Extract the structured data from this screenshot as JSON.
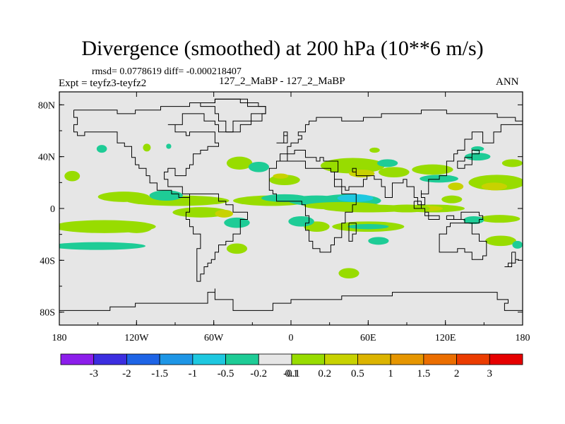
{
  "title": "Divergence (smoothed) at 200 hPa (10**6 m/s)",
  "stats": "rmsd= 0.0778619 diff= -0.000218407",
  "expt": "Expt = teyfz3-teyfz2",
  "case": "127_2_MaBP - 127_2_MaBP",
  "season": "ANN",
  "map": {
    "lon_range": [
      -180,
      180
    ],
    "lat_range": [
      -90,
      90
    ],
    "background_color": "#e6e6e6",
    "x_ticks": [
      {
        "label": "180",
        "value": -180
      },
      {
        "label": "120W",
        "value": -120
      },
      {
        "label": "60W",
        "value": -60
      },
      {
        "label": "0",
        "value": 0
      },
      {
        "label": "60E",
        "value": 60
      },
      {
        "label": "120E",
        "value": 120
      },
      {
        "label": "180",
        "value": 180
      }
    ],
    "y_ticks": [
      {
        "label": "80N",
        "value": 80
      },
      {
        "label": "40N",
        "value": 40
      },
      {
        "label": "0",
        "value": 0
      },
      {
        "label": "40S",
        "value": -40
      },
      {
        "label": "80S",
        "value": -80
      }
    ]
  },
  "colorbar": {
    "colors": [
      "#8c1eeb",
      "#3c2ee0",
      "#1e64e6",
      "#1e96e6",
      "#1ec8e0",
      "#1ecc96",
      "#e6e6e6",
      "#98dc00",
      "#c8d200",
      "#dcb400",
      "#e69600",
      "#eb6e00",
      "#eb3c00",
      "#e60000"
    ],
    "labels": [
      "-3",
      "-2",
      "-1.5",
      "-1",
      "-0.5",
      "-0.2",
      "-0.1",
      "0.1",
      "0.2",
      "0.5",
      "1",
      "1.5",
      "2",
      "3"
    ]
  },
  "field_blobs": [
    {
      "lon": -170,
      "lat": 25,
      "rx": 6,
      "ry": 4,
      "level": "pos_weak"
    },
    {
      "lon": -147,
      "lat": 46,
      "rx": 4,
      "ry": 3,
      "level": "neg_weak"
    },
    {
      "lon": -112,
      "lat": 47,
      "rx": 3,
      "ry": 3,
      "level": "pos_weak"
    },
    {
      "lon": -95,
      "lat": 48,
      "rx": 2,
      "ry": 2,
      "level": "neg_weak"
    },
    {
      "lon": -88,
      "lat": 6,
      "rx": 40,
      "ry": 4,
      "level": "pos_weak"
    },
    {
      "lon": -97,
      "lat": 10,
      "rx": 13,
      "ry": 4,
      "level": "neg_weak"
    },
    {
      "lon": -130,
      "lat": 9,
      "rx": 20,
      "ry": 4,
      "level": "pos_weak"
    },
    {
      "lon": -145,
      "lat": -14,
      "rx": 40,
      "ry": 5,
      "level": "pos_weak"
    },
    {
      "lon": -120,
      "lat": -15,
      "rx": 12,
      "ry": 4,
      "level": "pos_weak"
    },
    {
      "lon": -70,
      "lat": -3,
      "rx": 22,
      "ry": 4,
      "level": "pos_weak"
    },
    {
      "lon": -52,
      "lat": -4,
      "rx": 7,
      "ry": 3,
      "level": "pos_mid"
    },
    {
      "lon": -150,
      "lat": -29,
      "rx": 37,
      "ry": 3,
      "level": "neg_weak"
    },
    {
      "lon": -72,
      "lat": 5,
      "rx": 4,
      "ry": 2,
      "level": "pos_weak"
    },
    {
      "lon": -42,
      "lat": -11,
      "rx": 10,
      "ry": 4,
      "level": "neg_weak"
    },
    {
      "lon": -42,
      "lat": -31,
      "rx": 8,
      "ry": 4,
      "level": "pos_weak"
    },
    {
      "lon": -40,
      "lat": 35,
      "rx": 10,
      "ry": 5,
      "level": "pos_weak"
    },
    {
      "lon": -25,
      "lat": 32,
      "rx": 8,
      "ry": 4,
      "level": "neg_weak"
    },
    {
      "lon": -5,
      "lat": 22,
      "rx": 12,
      "ry": 4,
      "level": "pos_weak"
    },
    {
      "lon": -15,
      "lat": 6,
      "rx": 30,
      "ry": 4,
      "level": "pos_weak"
    },
    {
      "lon": -5,
      "lat": 8,
      "rx": 18,
      "ry": 3,
      "level": "neg_weak"
    },
    {
      "lon": 20,
      "lat": 6,
      "rx": 22,
      "ry": 4,
      "level": "neg_weak"
    },
    {
      "lon": 45,
      "lat": 6,
      "rx": 25,
      "ry": 5,
      "level": "neg_weak"
    },
    {
      "lon": 50,
      "lat": 8,
      "rx": 14,
      "ry": 3,
      "level": "neg_strong"
    },
    {
      "lon": 40,
      "lat": 2,
      "rx": 30,
      "ry": 3,
      "level": "pos_weak"
    },
    {
      "lon": 60,
      "lat": 0,
      "rx": 35,
      "ry": 3,
      "level": "pos_weak"
    },
    {
      "lon": 20,
      "lat": -14,
      "rx": 10,
      "ry": 4,
      "level": "pos_weak"
    },
    {
      "lon": 8,
      "lat": -10,
      "rx": 10,
      "ry": 4,
      "level": "neg_weak"
    },
    {
      "lon": 60,
      "lat": -14,
      "rx": 28,
      "ry": 4,
      "level": "pos_weak"
    },
    {
      "lon": 60,
      "lat": -14,
      "rx": 16,
      "ry": 2,
      "level": "neg_weak"
    },
    {
      "lon": 68,
      "lat": -25,
      "rx": 8,
      "ry": 3,
      "level": "neg_weak"
    },
    {
      "lon": 45,
      "lat": -50,
      "rx": 8,
      "ry": 4,
      "level": "pos_weak"
    },
    {
      "lon": 48,
      "lat": 33,
      "rx": 25,
      "ry": 6,
      "level": "pos_weak"
    },
    {
      "lon": 55,
      "lat": 27,
      "rx": 10,
      "ry": 3,
      "level": "pos_mid"
    },
    {
      "lon": 65,
      "lat": 45,
      "rx": 4,
      "ry": 2,
      "level": "pos_weak"
    },
    {
      "lon": 75,
      "lat": 35,
      "rx": 8,
      "ry": 3,
      "level": "neg_weak"
    },
    {
      "lon": 80,
      "lat": 28,
      "rx": 12,
      "ry": 4,
      "level": "pos_weak"
    },
    {
      "lon": 110,
      "lat": 30,
      "rx": 16,
      "ry": 4,
      "level": "pos_weak"
    },
    {
      "lon": 115,
      "lat": 23,
      "rx": 15,
      "ry": 3,
      "level": "neg_weak"
    },
    {
      "lon": 110,
      "lat": 0,
      "rx": 25,
      "ry": 3,
      "level": "pos_weak"
    },
    {
      "lon": 108,
      "lat": 0,
      "rx": 10,
      "ry": 2,
      "level": "pos_mid"
    },
    {
      "lon": 90,
      "lat": 0,
      "rx": 18,
      "ry": 3,
      "level": "pos_weak"
    },
    {
      "lon": 125,
      "lat": 7,
      "rx": 8,
      "ry": 3,
      "level": "pos_weak"
    },
    {
      "lon": 145,
      "lat": 40,
      "rx": 10,
      "ry": 3,
      "level": "neg_weak"
    },
    {
      "lon": 160,
      "lat": 20,
      "rx": 22,
      "ry": 6,
      "level": "pos_weak"
    },
    {
      "lon": 158,
      "lat": 17,
      "rx": 10,
      "ry": 3,
      "level": "pos_mid"
    },
    {
      "lon": 172,
      "lat": 35,
      "rx": 8,
      "ry": 3,
      "level": "pos_weak"
    },
    {
      "lon": 162,
      "lat": -8,
      "rx": 16,
      "ry": 3,
      "level": "pos_weak"
    },
    {
      "lon": 163,
      "lat": -25,
      "rx": 12,
      "ry": 4,
      "level": "pos_weak"
    },
    {
      "lon": 142,
      "lat": -9,
      "rx": 8,
      "ry": 3,
      "level": "neg_weak"
    },
    {
      "lon": 176,
      "lat": -28,
      "rx": 4,
      "ry": 3,
      "level": "neg_weak"
    },
    {
      "lon": 145,
      "lat": 46,
      "rx": 5,
      "ry": 2,
      "level": "neg_weak"
    },
    {
      "lon": 128,
      "lat": 17,
      "rx": 6,
      "ry": 3,
      "level": "pos_mid"
    },
    {
      "lon": -8,
      "lat": 25,
      "rx": 6,
      "ry": 2,
      "level": "pos_mid"
    }
  ],
  "coastlines": [
    [
      [
        -168,
        75
      ],
      [
        -150,
        75
      ],
      [
        -135,
        74
      ],
      [
        -120,
        76
      ],
      [
        -100,
        78
      ],
      [
        -80,
        82
      ],
      [
        -60,
        83
      ],
      [
        -40,
        82
      ],
      [
        -25,
        80
      ],
      [
        -20,
        72
      ],
      [
        -30,
        68
      ],
      [
        -45,
        60
      ],
      [
        -55,
        64
      ],
      [
        -60,
        68
      ],
      [
        -68,
        74
      ],
      [
        -80,
        72
      ],
      [
        -85,
        66
      ],
      [
        -95,
        64
      ],
      [
        -90,
        60
      ],
      [
        -82,
        55
      ],
      [
        -78,
        60
      ],
      [
        -70,
        58
      ],
      [
        -60,
        52
      ],
      [
        -55,
        48
      ],
      [
        -65,
        44
      ],
      [
        -70,
        42
      ],
      [
        -75,
        38
      ],
      [
        -76,
        34
      ],
      [
        -80,
        30
      ],
      [
        -82,
        26
      ],
      [
        -90,
        30
      ],
      [
        -95,
        28
      ],
      [
        -98,
        22
      ],
      [
        -95,
        18
      ],
      [
        -88,
        16
      ],
      [
        -84,
        12
      ],
      [
        -80,
        8
      ],
      [
        -78,
        9
      ],
      [
        -82,
        8
      ],
      [
        -86,
        12
      ],
      [
        -92,
        15
      ],
      [
        -105,
        20
      ],
      [
        -110,
        24
      ],
      [
        -112,
        30
      ],
      [
        -118,
        34
      ],
      [
        -122,
        38
      ],
      [
        -124,
        42
      ],
      [
        -124,
        48
      ],
      [
        -128,
        52
      ],
      [
        -135,
        58
      ],
      [
        -145,
        60
      ],
      [
        -152,
        58
      ],
      [
        -160,
        56
      ],
      [
        -165,
        60
      ],
      [
        -168,
        65
      ],
      [
        -165,
        70
      ],
      [
        -168,
        75
      ]
    ],
    [
      [
        -80,
        10
      ],
      [
        -75,
        11
      ],
      [
        -70,
        12
      ],
      [
        -62,
        10
      ],
      [
        -55,
        6
      ],
      [
        -50,
        2
      ],
      [
        -45,
        -2
      ],
      [
        -38,
        -4
      ],
      [
        -35,
        -8
      ],
      [
        -38,
        -14
      ],
      [
        -40,
        -20
      ],
      [
        -45,
        -24
      ],
      [
        -50,
        -28
      ],
      [
        -55,
        -34
      ],
      [
        -58,
        -38
      ],
      [
        -63,
        -42
      ],
      [
        -66,
        -46
      ],
      [
        -68,
        -52
      ],
      [
        -70,
        -55
      ],
      [
        -74,
        -52
      ],
      [
        -74,
        -46
      ],
      [
        -73,
        -38
      ],
      [
        -72,
        -30
      ],
      [
        -71,
        -20
      ],
      [
        -76,
        -14
      ],
      [
        -80,
        -8
      ],
      [
        -81,
        -2
      ],
      [
        -80,
        2
      ],
      [
        -78,
        6
      ],
      [
        -80,
        10
      ]
    ],
    [
      [
        -18,
        22
      ],
      [
        -17,
        15
      ],
      [
        -14,
        10
      ],
      [
        -10,
        6
      ],
      [
        -5,
        5
      ],
      [
        5,
        5
      ],
      [
        9,
        4
      ],
      [
        10,
        0
      ],
      [
        12,
        -6
      ],
      [
        14,
        -12
      ],
      [
        12,
        -18
      ],
      [
        15,
        -25
      ],
      [
        18,
        -32
      ],
      [
        22,
        -35
      ],
      [
        28,
        -33
      ],
      [
        32,
        -28
      ],
      [
        35,
        -22
      ],
      [
        40,
        -16
      ],
      [
        40,
        -10
      ],
      [
        42,
        -2
      ],
      [
        48,
        4
      ],
      [
        51,
        12
      ],
      [
        44,
        11
      ],
      [
        38,
        18
      ],
      [
        34,
        27
      ],
      [
        32,
        31
      ],
      [
        20,
        32
      ],
      [
        10,
        37
      ],
      [
        0,
        36
      ],
      [
        -6,
        36
      ],
      [
        -10,
        30
      ],
      [
        -16,
        25
      ],
      [
        -18,
        22
      ]
    ],
    [
      [
        -10,
        36
      ],
      [
        -9,
        43
      ],
      [
        -2,
        44
      ],
      [
        -4,
        48
      ],
      [
        0,
        50
      ],
      [
        5,
        53
      ],
      [
        8,
        57
      ],
      [
        5,
        60
      ],
      [
        10,
        64
      ],
      [
        15,
        68
      ],
      [
        20,
        70
      ],
      [
        30,
        70
      ],
      [
        40,
        68
      ],
      [
        55,
        70
      ],
      [
        70,
        72
      ],
      [
        80,
        74
      ],
      [
        100,
        76
      ],
      [
        120,
        74
      ],
      [
        140,
        72
      ],
      [
        160,
        70
      ],
      [
        175,
        68
      ],
      [
        180,
        66
      ],
      [
        172,
        64
      ],
      [
        162,
        60
      ],
      [
        158,
        52
      ],
      [
        150,
        58
      ],
      [
        140,
        54
      ],
      [
        135,
        44
      ],
      [
        130,
        42
      ],
      [
        126,
        37
      ],
      [
        122,
        32
      ],
      [
        120,
        26
      ],
      [
        115,
        22
      ],
      [
        108,
        18
      ],
      [
        106,
        10
      ],
      [
        100,
        14
      ],
      [
        100,
        8
      ],
      [
        104,
        2
      ],
      [
        98,
        8
      ],
      [
        96,
        16
      ],
      [
        90,
        22
      ],
      [
        86,
        20
      ],
      [
        80,
        15
      ],
      [
        78,
        8
      ],
      [
        73,
        18
      ],
      [
        70,
        22
      ],
      [
        66,
        25
      ],
      [
        58,
        25
      ],
      [
        56,
        26
      ],
      [
        52,
        28
      ],
      [
        48,
        30
      ],
      [
        50,
        26
      ],
      [
        54,
        24
      ],
      [
        58,
        22
      ],
      [
        56,
        18
      ],
      [
        52,
        16
      ],
      [
        44,
        13
      ],
      [
        42,
        16
      ],
      [
        38,
        22
      ],
      [
        34,
        28
      ],
      [
        36,
        36
      ],
      [
        30,
        36
      ],
      [
        26,
        40
      ],
      [
        22,
        37
      ],
      [
        20,
        40
      ],
      [
        15,
        38
      ],
      [
        12,
        44
      ],
      [
        8,
        44
      ],
      [
        3,
        42
      ],
      [
        -2,
        37
      ],
      [
        -10,
        36
      ]
    ],
    [
      [
        114,
        -22
      ],
      [
        114,
        -28
      ],
      [
        116,
        -34
      ],
      [
        124,
        -34
      ],
      [
        130,
        -32
      ],
      [
        136,
        -34
      ],
      [
        140,
        -38
      ],
      [
        146,
        -39
      ],
      [
        150,
        -37
      ],
      [
        153,
        -30
      ],
      [
        153,
        -25
      ],
      [
        146,
        -19
      ],
      [
        142,
        -11
      ],
      [
        136,
        -12
      ],
      [
        131,
        -12
      ],
      [
        125,
        -15
      ],
      [
        120,
        -19
      ],
      [
        114,
        -22
      ]
    ],
    [
      [
        -180,
        -78
      ],
      [
        -150,
        -78
      ],
      [
        -140,
        -75
      ],
      [
        -120,
        -74
      ],
      [
        -100,
        -73
      ],
      [
        -80,
        -72
      ],
      [
        -65,
        -65
      ],
      [
        -60,
        -63
      ],
      [
        -58,
        -70
      ],
      [
        -45,
        -78
      ],
      [
        -30,
        -78
      ],
      [
        -15,
        -72
      ],
      [
        0,
        -70
      ],
      [
        20,
        -70
      ],
      [
        40,
        -68
      ],
      [
        60,
        -67
      ],
      [
        80,
        -66
      ],
      [
        100,
        -65
      ],
      [
        120,
        -66
      ],
      [
        140,
        -66
      ],
      [
        160,
        -70
      ],
      [
        170,
        -72
      ],
      [
        165,
        -78
      ],
      [
        180,
        -80
      ]
    ],
    [
      [
        44,
        -12
      ],
      [
        50,
        -14
      ],
      [
        50,
        -20
      ],
      [
        47,
        -25
      ],
      [
        44,
        -22
      ],
      [
        44,
        -12
      ]
    ],
    [
      [
        -50,
        60
      ],
      [
        -40,
        65
      ],
      [
        -30,
        68
      ],
      [
        -22,
        72
      ],
      [
        -20,
        78
      ],
      [
        -35,
        83
      ],
      [
        -60,
        82
      ],
      [
        -70,
        78
      ],
      [
        -60,
        74
      ],
      [
        -55,
        68
      ],
      [
        -50,
        60
      ]
    ],
    [
      [
        120,
        -6
      ],
      [
        126,
        -8
      ],
      [
        132,
        -4
      ],
      [
        140,
        -3
      ],
      [
        145,
        -6
      ],
      [
        150,
        -8
      ],
      [
        145,
        -10
      ],
      [
        135,
        -8
      ],
      [
        125,
        -9
      ],
      [
        120,
        -6
      ]
    ],
    [
      [
        95,
        5
      ],
      [
        100,
        -1
      ],
      [
        105,
        -6
      ],
      [
        110,
        -7
      ],
      [
        115,
        -8
      ],
      [
        108,
        -3
      ],
      [
        104,
        1
      ],
      [
        95,
        5
      ]
    ],
    [
      [
        172,
        -35
      ],
      [
        175,
        -38
      ],
      [
        178,
        -40
      ],
      [
        174,
        -42
      ],
      [
        170,
        -46
      ],
      [
        167,
        -46
      ],
      [
        172,
        -40
      ],
      [
        172,
        -35
      ]
    ],
    [
      [
        -10,
        52
      ],
      [
        -6,
        55
      ],
      [
        -3,
        58
      ],
      [
        -5,
        55
      ],
      [
        -3,
        52
      ],
      [
        -10,
        52
      ]
    ],
    [
      [
        130,
        31
      ],
      [
        135,
        35
      ],
      [
        140,
        37
      ],
      [
        142,
        42
      ],
      [
        145,
        44
      ],
      [
        140,
        40
      ],
      [
        136,
        36
      ],
      [
        130,
        31
      ]
    ]
  ]
}
